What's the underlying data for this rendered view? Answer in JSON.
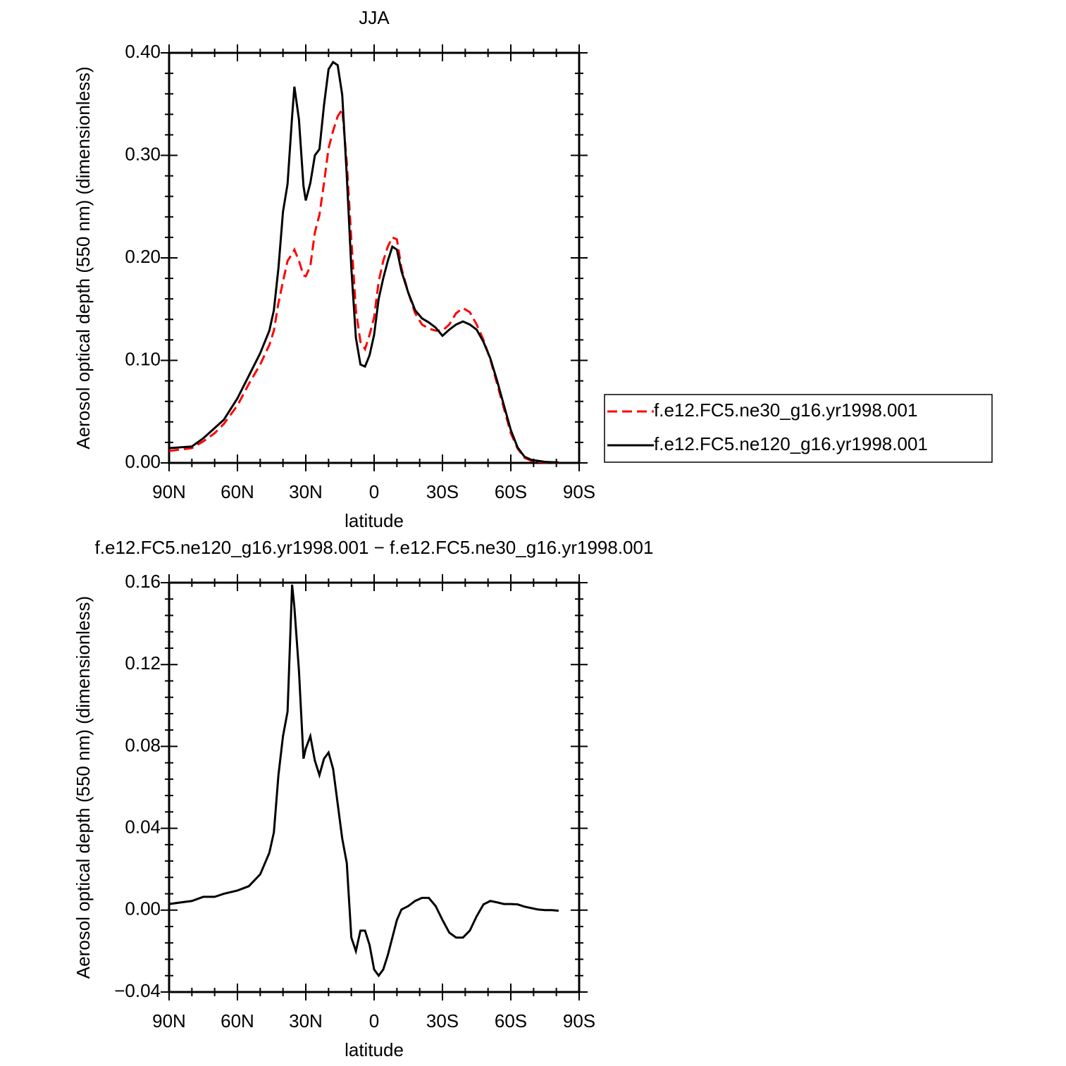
{
  "chart_data": [
    {
      "type": "line",
      "title": "JJA",
      "xlabel": "latitude",
      "ylabel": "Aerosol optical depth (550 nm) (dimensionless)",
      "x": [
        90,
        80,
        75,
        70,
        66,
        60,
        55,
        50,
        46,
        44,
        42,
        40,
        38,
        36,
        35,
        33,
        31,
        30,
        28,
        26,
        24,
        22,
        20,
        18,
        16,
        14,
        12,
        10,
        8,
        6,
        4,
        2,
        0,
        -2,
        -4,
        -6,
        -8,
        -10,
        -12,
        -15,
        -18,
        -21,
        -24,
        -27,
        -30,
        -33,
        -36,
        -39,
        -42,
        -45,
        -48,
        -51,
        -54,
        -57,
        -60,
        -63,
        -66,
        -69,
        -72,
        -75,
        -78,
        -81
      ],
      "series": [
        {
          "name": "f.e12.FC5.ne30_g16.yr1998.001",
          "color": "#ff0000",
          "linestyle": "dashed",
          "values": [
            0.0117,
            0.0144,
            0.021,
            0.029,
            0.038,
            0.056,
            0.077,
            0.096,
            0.115,
            0.129,
            0.156,
            0.177,
            0.197,
            0.204,
            0.208,
            0.197,
            0.183,
            0.182,
            0.192,
            0.225,
            0.242,
            0.273,
            0.307,
            0.324,
            0.338,
            0.345,
            0.293,
            0.218,
            0.149,
            0.118,
            0.111,
            0.125,
            0.142,
            0.177,
            0.197,
            0.211,
            0.22,
            0.218,
            0.19,
            0.166,
            0.146,
            0.135,
            0.131,
            0.129,
            0.129,
            0.135,
            0.146,
            0.151,
            0.147,
            0.135,
            0.12,
            0.101,
            0.077,
            0.053,
            0.029,
            0.014,
            0.005,
            0.002,
            0.001,
            0.0007,
            0.0005,
            0.0003
          ]
        },
        {
          "name": "f.e12.FC5.ne120_g16.yr1998.001",
          "color": "#000000",
          "linestyle": "solid",
          "values": [
            0.0144,
            0.016,
            0.024,
            0.034,
            0.042,
            0.063,
            0.085,
            0.107,
            0.129,
            0.149,
            0.19,
            0.245,
            0.272,
            0.338,
            0.367,
            0.335,
            0.27,
            0.256,
            0.273,
            0.3,
            0.306,
            0.349,
            0.384,
            0.391,
            0.388,
            0.359,
            0.28,
            0.19,
            0.122,
            0.096,
            0.094,
            0.105,
            0.125,
            0.16,
            0.18,
            0.197,
            0.211,
            0.208,
            0.187,
            0.166,
            0.149,
            0.141,
            0.137,
            0.132,
            0.124,
            0.13,
            0.135,
            0.138,
            0.135,
            0.13,
            0.118,
            0.102,
            0.08,
            0.056,
            0.032,
            0.015,
            0.006,
            0.003,
            0.002,
            0.001,
            0.0007,
            0.0005
          ]
        }
      ],
      "xlim": [
        90,
        -90
      ],
      "xticks": [
        {
          "value": 90,
          "label": "90N"
        },
        {
          "value": 60,
          "label": "60N"
        },
        {
          "value": 30,
          "label": "30N"
        },
        0,
        {
          "value": -30,
          "label": "30S"
        },
        {
          "value": -60,
          "label": "60S"
        },
        {
          "value": -90,
          "label": "90S"
        }
      ],
      "ylim": [
        0,
        0.4
      ],
      "yticks": [
        {
          "value": 0,
          "label": "0.00"
        },
        {
          "value": 0.1,
          "label": "0.10"
        },
        {
          "value": 0.2,
          "label": "0.20"
        },
        {
          "value": 0.3,
          "label": "0.30"
        },
        {
          "value": 0.4,
          "label": "0.40"
        }
      ],
      "legend": "right"
    },
    {
      "type": "line",
      "title": "f.e12.FC5.ne120_g16.yr1998.001 − f.e12.FC5.ne30_g16.yr1998.001",
      "xlabel": "latitude",
      "ylabel": "Aerosol optical depth (550 nm) (dimensionless)",
      "x": [
        90,
        80,
        75,
        70,
        66,
        60,
        55,
        50,
        46,
        44,
        42,
        40,
        38,
        36,
        35,
        33,
        31,
        30,
        28,
        26,
        24,
        22,
        20,
        18,
        16,
        14,
        12,
        10,
        8,
        6,
        4,
        2,
        0,
        -2,
        -4,
        -6,
        -8,
        -10,
        -12,
        -15,
        -18,
        -21,
        -24,
        -27,
        -30,
        -33,
        -36,
        -39,
        -42,
        -45,
        -48,
        -51,
        -54,
        -57,
        -60,
        -63,
        -66,
        -69,
        -72,
        -75,
        -78,
        -81
      ],
      "values": [
        0.003,
        0.0045,
        0.0065,
        0.0065,
        0.008,
        0.0096,
        0.0117,
        0.0175,
        0.028,
        0.038,
        0.066,
        0.085,
        0.097,
        0.159,
        0.148,
        0.117,
        0.074,
        0.079,
        0.085,
        0.073,
        0.066,
        0.074,
        0.077,
        0.069,
        0.052,
        0.035,
        0.023,
        -0.0134,
        -0.02,
        -0.01,
        -0.01,
        -0.017,
        -0.029,
        -0.032,
        -0.029,
        -0.022,
        -0.0134,
        -0.0048,
        0.0003,
        0.002,
        0.0045,
        0.006,
        0.006,
        0.002,
        -0.0048,
        -0.011,
        -0.0134,
        -0.0134,
        -0.01,
        -0.003,
        0.0028,
        0.0045,
        0.0038,
        0.003,
        0.003,
        0.0028,
        0.0017,
        0.001,
        0.0003,
        0,
        0,
        -0.0003
      ],
      "color": "#000000",
      "xlim": [
        90,
        -90
      ],
      "xticks": [
        {
          "value": 90,
          "label": "90N"
        },
        {
          "value": 60,
          "label": "60N"
        },
        {
          "value": 30,
          "label": "30N"
        },
        0,
        {
          "value": -30,
          "label": "30S"
        },
        {
          "value": -60,
          "label": "60S"
        },
        {
          "value": -90,
          "label": "90S"
        }
      ],
      "ylim": [
        -0.04,
        0.16
      ],
      "yticks": [
        {
          "value": -0.04,
          "label": "−0.04"
        },
        {
          "value": 0,
          "label": "0.00"
        },
        {
          "value": 0.04,
          "label": "0.04"
        },
        {
          "value": 0.08,
          "label": "0.08"
        },
        {
          "value": 0.12,
          "label": "0.12"
        },
        {
          "value": 0.16,
          "label": "0.16"
        }
      ]
    }
  ]
}
